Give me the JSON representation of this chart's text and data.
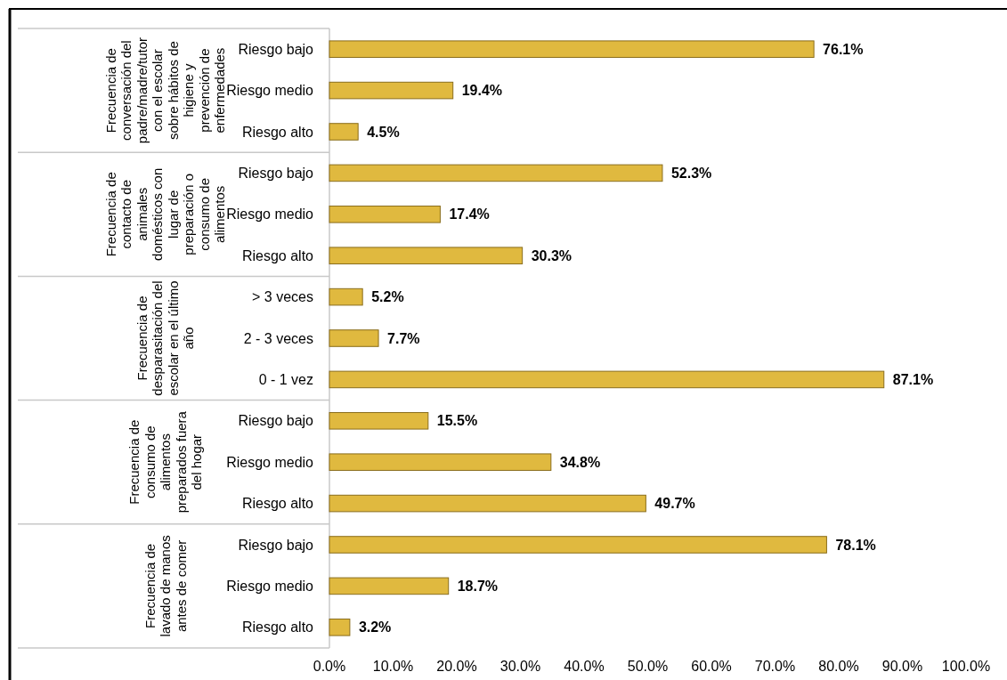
{
  "chart_data": {
    "type": "bar",
    "orientation": "horizontal",
    "categories": [
      "Riesgo bajo",
      "Riesgo medio",
      "Riesgo alto",
      "Riesgo bajo",
      "Riesgo medio",
      "Riesgo alto",
      "> 3 veces",
      "2 - 3 veces",
      "0 - 1 vez",
      "Riesgo bajo",
      "Riesgo medio",
      "Riesgo alto",
      "Riesgo bajo",
      "Riesgo medio",
      "Riesgo alto"
    ],
    "values": [
      76.1,
      19.4,
      4.5,
      52.3,
      17.4,
      30.3,
      5.2,
      7.7,
      87.1,
      15.5,
      34.8,
      49.7,
      78.1,
      18.7,
      3.2
    ],
    "value_labels": [
      "76.1%",
      "19.4%",
      "4.5%",
      "52.3%",
      "17.4%",
      "30.3%",
      "5.2%",
      "7.7%",
      "87.1%",
      "15.5%",
      "34.8%",
      "49.7%",
      "78.1%",
      "18.7%",
      "3.2%"
    ],
    "color": "#e0b93f",
    "xlim": [
      0,
      100
    ],
    "xticks": [
      {
        "value": 0,
        "label": "0.0%"
      },
      {
        "value": 10,
        "label": "10.0%"
      },
      {
        "value": 20,
        "label": "20.0%"
      },
      {
        "value": 30,
        "label": "30.0%"
      },
      {
        "value": 40,
        "label": "40.0%"
      },
      {
        "value": 50,
        "label": "50.0%"
      },
      {
        "value": 60,
        "label": "60.0%"
      },
      {
        "value": 70,
        "label": "70.0%"
      },
      {
        "value": 80,
        "label": "80.0%"
      },
      {
        "value": 90,
        "label": "90.0%"
      },
      {
        "value": 100,
        "label": "100.0%"
      }
    ],
    "grid": false,
    "annotations": [
      "Frecuencia de conversación del padre/madre/tutor con el escolar sobre hábitos de higiene y prevención de enfermedades",
      "Frecuencia de contacto de animales domésticos con lugar de preparación o consumo de alimentos",
      "Frecuencia de desparasitación del escolar en el último año",
      "Frecuencia de consumo de alimentos preparados fuera del hogar",
      "Frecuencia de lavado de manos antes de comer"
    ]
  }
}
